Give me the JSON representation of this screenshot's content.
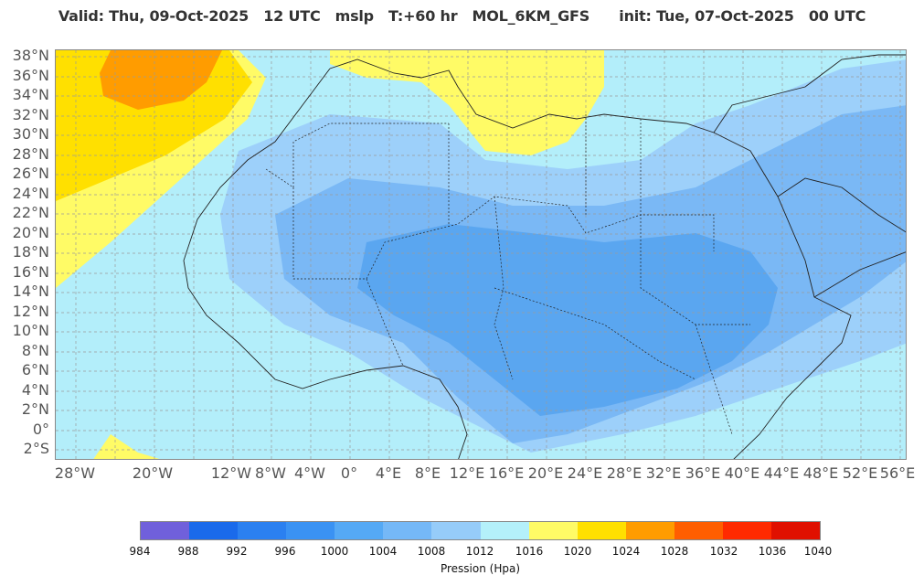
{
  "header": {
    "title": "Valid: Thu, 09-Oct-2025   12 UTC   mslp   T:+60 hr   MOL_6KM_GFS      init: Tue, 07-Oct-2025   00 UTC"
  },
  "map": {
    "latitudes": [
      "38°N",
      "36°N",
      "34°N",
      "32°N",
      "30°N",
      "28°N",
      "26°N",
      "24°N",
      "22°N",
      "20°N",
      "18°N",
      "16°N",
      "14°N",
      "12°N",
      "10°N",
      "8°N",
      "6°N",
      "4°N",
      "2°N",
      "0°",
      "2°S"
    ],
    "longitudes": [
      "28°W",
      "20°W",
      "12°W",
      "8°W",
      "4°W",
      "0°",
      "4°E",
      "8°E",
      "12°E",
      "16°E",
      "20°E",
      "24°E",
      "28°E",
      "32°E",
      "36°E",
      "40°E",
      "44°E",
      "48°E",
      "52°E",
      "56°E"
    ],
    "colors": {
      "p1004": "#5aa6f0",
      "p1008": "#7ab8f5",
      "p1012": "#9dd0fa",
      "p1016": "#b3eefa",
      "p1020": "#fffb66",
      "p1024": "#ffe000",
      "p1028": "#ff9c00"
    }
  },
  "legend": {
    "title": "Pression (Hpa)",
    "ticks": [
      "984",
      "988",
      "992",
      "996",
      "1000",
      "1004",
      "1008",
      "1012",
      "1016",
      "1020",
      "1024",
      "1028",
      "1032",
      "1036",
      "1040"
    ],
    "colors": [
      "#7060db",
      "#1a6aeb",
      "#2b80f0",
      "#3a92f3",
      "#55a9f5",
      "#75b8f7",
      "#96ccf9",
      "#b4f0fa",
      "#fffb66",
      "#ffe000",
      "#ff9c00",
      "#ff5e00",
      "#ff2a00",
      "#e01000"
    ]
  }
}
